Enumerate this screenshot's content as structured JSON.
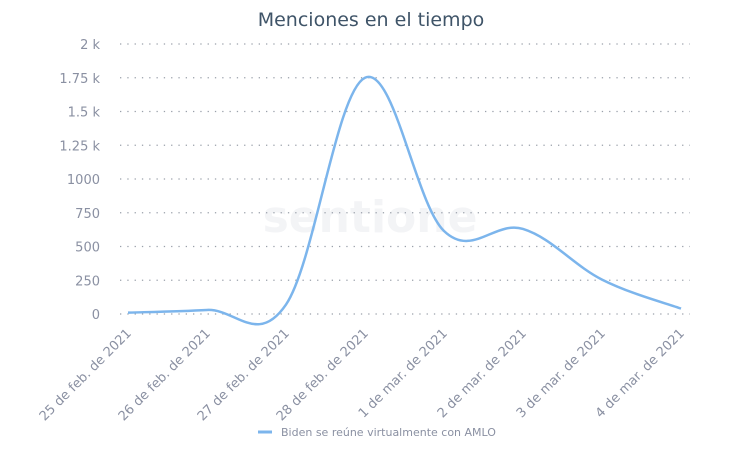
{
  "watermark": "sentione",
  "colors": {
    "series": "#7cb5ec",
    "title": "#3f5468",
    "tick": "#8a90a2"
  },
  "chart_data": {
    "type": "line",
    "smooth": true,
    "title": "Menciones en el tiempo",
    "categories": [
      "25 de feb. de 2021",
      "26 de feb. de 2021",
      "27 de feb. de 2021",
      "28 de feb. de 2021",
      "1 de mar. de 2021",
      "2 de mar. de 2021",
      "3 de mar. de 2021",
      "4 de mar. de 2021"
    ],
    "series": [
      {
        "name": "Biden se reúne virtualmente con AMLO",
        "values": [
          10,
          30,
          70,
          1750,
          615,
          630,
          255,
          40
        ]
      }
    ],
    "ylim": [
      0,
      2000
    ],
    "yticks": [
      0,
      250,
      500,
      750,
      1000,
      1250,
      1500,
      1750,
      2000
    ],
    "ytick_labels": [
      "0",
      "250",
      "500",
      "750",
      "1000",
      "1.25 k",
      "1.5 k",
      "1.75 k",
      "2 k"
    ],
    "grid": true,
    "legend": "bottom-center"
  }
}
